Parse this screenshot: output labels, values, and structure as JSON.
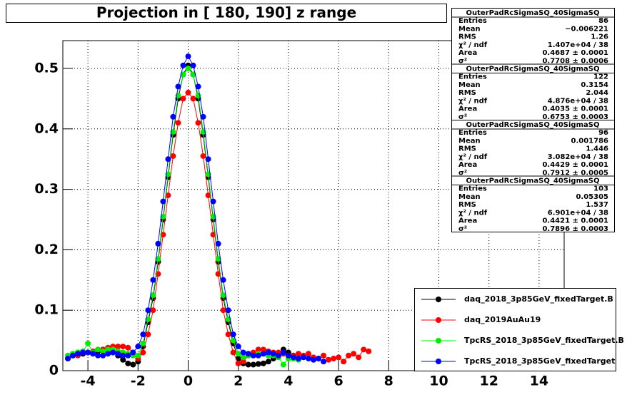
{
  "chart_data": {
    "type": "scatter",
    "title": "Projection in [ 180, 190] z range",
    "xlim": [
      -5,
      15
    ],
    "ylim": [
      0,
      0.546
    ],
    "xticks": [
      -4,
      -2,
      0,
      2,
      4,
      6,
      8,
      10,
      12,
      14
    ],
    "yticks": [
      0,
      0.1,
      0.2,
      0.3,
      0.4,
      0.5
    ],
    "grid": true,
    "legend": "lower right",
    "x": [
      -4.8,
      -4.6,
      -4.4,
      -4.2,
      -4.0,
      -3.8,
      -3.6,
      -3.4,
      -3.2,
      -3.0,
      -2.8,
      -2.6,
      -2.4,
      -2.2,
      -2.0,
      -1.8,
      -1.6,
      -1.4,
      -1.2,
      -1.0,
      -0.8,
      -0.6,
      -0.4,
      -0.2,
      0,
      0.2,
      0.4,
      0.6,
      0.8,
      1.0,
      1.2,
      1.4,
      1.6,
      1.8,
      2.0,
      2.2,
      2.4,
      2.6,
      2.8,
      3.0,
      3.2,
      3.4,
      3.6,
      3.8,
      4.0,
      4.2,
      4.4,
      4.6,
      4.8,
      5.0,
      5.2,
      5.4,
      5.6,
      5.8,
      6.0,
      6.2,
      6.4,
      6.6,
      6.8,
      7.0,
      7.2
    ],
    "series": [
      {
        "name": "daq_2018_3p85GeV_fixedTarget.B",
        "color": "#000000",
        "values": [
          0.02,
          0.025,
          0.03,
          0.028,
          0.03,
          0.03,
          0.032,
          0.035,
          0.032,
          0.03,
          0.025,
          0.018,
          0.012,
          0.01,
          0.015,
          0.04,
          0.08,
          0.12,
          0.18,
          0.25,
          0.32,
          0.39,
          0.45,
          0.49,
          0.505,
          0.49,
          0.45,
          0.39,
          0.32,
          0.25,
          0.18,
          0.12,
          0.08,
          0.045,
          0.02,
          0.012,
          0.01,
          0.01,
          0.011,
          0.012,
          0.015,
          0.02,
          0.025,
          0.035,
          0.03,
          0.025,
          0.02,
          null,
          null,
          null,
          null,
          null,
          null,
          null,
          null,
          null,
          null,
          null,
          null,
          null,
          null
        ]
      },
      {
        "name": "daq_2019AuAu19",
        "color": "#ff0000",
        "values": [
          0.02,
          0.025,
          0.025,
          0.03,
          0.03,
          0.032,
          0.035,
          0.035,
          0.038,
          0.04,
          0.04,
          0.04,
          0.038,
          0.03,
          0.02,
          0.03,
          0.06,
          0.1,
          0.16,
          0.225,
          0.29,
          0.355,
          0.41,
          0.45,
          0.46,
          0.45,
          0.41,
          0.355,
          0.29,
          0.225,
          0.16,
          0.1,
          0.06,
          0.03,
          0.012,
          0.015,
          0.025,
          0.03,
          0.035,
          0.035,
          0.032,
          0.03,
          0.03,
          0.028,
          0.025,
          0.025,
          0.028,
          0.025,
          0.028,
          0.022,
          0.02,
          0.025,
          0.018,
          0.02,
          0.022,
          0.015,
          0.025,
          0.028,
          0.022,
          0.035,
          0.032
        ]
      },
      {
        "name": "TpcRS_2018_3p85GeV_fixedTarget.B",
        "color": "#00ee00",
        "values": [
          0.025,
          0.028,
          0.03,
          0.032,
          0.045,
          0.03,
          0.035,
          0.032,
          0.035,
          0.035,
          0.032,
          0.03,
          0.028,
          0.025,
          0.025,
          0.045,
          0.085,
          0.125,
          0.185,
          0.255,
          0.325,
          0.395,
          0.455,
          0.49,
          0.5,
          0.49,
          0.455,
          0.395,
          0.325,
          0.255,
          0.185,
          0.125,
          0.085,
          0.05,
          0.028,
          0.022,
          0.025,
          0.025,
          0.028,
          0.028,
          0.025,
          0.025,
          0.022,
          0.01,
          0.02,
          0.02,
          0.018,
          null,
          null,
          null,
          null,
          null,
          null,
          null,
          null,
          null,
          null,
          null,
          null,
          null,
          null
        ]
      },
      {
        "name": "TpcRS_2018_3p85GeV_fixedTarget",
        "color": "#0000ff",
        "values": [
          0.02,
          0.025,
          0.028,
          0.03,
          0.03,
          0.028,
          0.025,
          0.025,
          0.028,
          0.03,
          0.028,
          0.025,
          0.025,
          0.03,
          0.04,
          0.06,
          0.1,
          0.15,
          0.21,
          0.28,
          0.35,
          0.42,
          0.47,
          0.505,
          0.52,
          0.505,
          0.47,
          0.42,
          0.35,
          0.28,
          0.21,
          0.15,
          0.1,
          0.06,
          0.04,
          0.03,
          0.028,
          0.025,
          0.025,
          0.028,
          0.03,
          0.028,
          0.025,
          0.03,
          0.025,
          0.022,
          0.02,
          0.022,
          0.02,
          0.018,
          0.02,
          0.015,
          null,
          null,
          null,
          null,
          null,
          null,
          null,
          null,
          null
        ]
      }
    ],
    "stats_boxes": [
      {
        "title": "OuterPadRcSigmaSQ_40SigmaSQ",
        "rows": [
          [
            "Entries",
            "86"
          ],
          [
            "Mean",
            "−0.006221"
          ],
          [
            "RMS",
            "1.26"
          ],
          [
            "χ² / ndf",
            "1.407e+04 / 38"
          ],
          [
            "Area",
            "0.4687 ± 0.0001"
          ],
          [
            "σ²",
            "0.7708 ± 0.0006"
          ]
        ]
      },
      {
        "title": "OuterPadRcSigmaSQ_40SigmaSQ",
        "rows": [
          [
            "Entries",
            "122"
          ],
          [
            "Mean",
            "0.3154"
          ],
          [
            "RMS",
            "2.044"
          ],
          [
            "χ² / ndf",
            "4.876e+04 / 38"
          ],
          [
            "Area",
            "0.4035 ± 0.0001"
          ],
          [
            "σ²",
            "0.6753 ± 0.0003"
          ]
        ]
      },
      {
        "title": "OuterPadRcSigmaSQ_40SigmaSQ",
        "rows": [
          [
            "Entries",
            "96"
          ],
          [
            "Mean",
            "0.001786"
          ],
          [
            "RMS",
            "1.446"
          ],
          [
            "χ² / ndf",
            "3.082e+04 / 38"
          ],
          [
            "Area",
            "0.4429 ± 0.0001"
          ],
          [
            "σ²",
            "0.7912 ± 0.0005"
          ]
        ]
      },
      {
        "title": "OuterPadRcSigmaSQ_40SigmaSQ",
        "rows": [
          [
            "Entries",
            "103"
          ],
          [
            "Mean",
            "0.05305"
          ],
          [
            "RMS",
            "1.537"
          ],
          [
            "χ² / ndf",
            "6.901e+04 / 38"
          ],
          [
            "Area",
            "0.4421 ± 0.0001"
          ],
          [
            "σ²",
            "0.7896 ± 0.0003"
          ]
        ]
      }
    ]
  }
}
